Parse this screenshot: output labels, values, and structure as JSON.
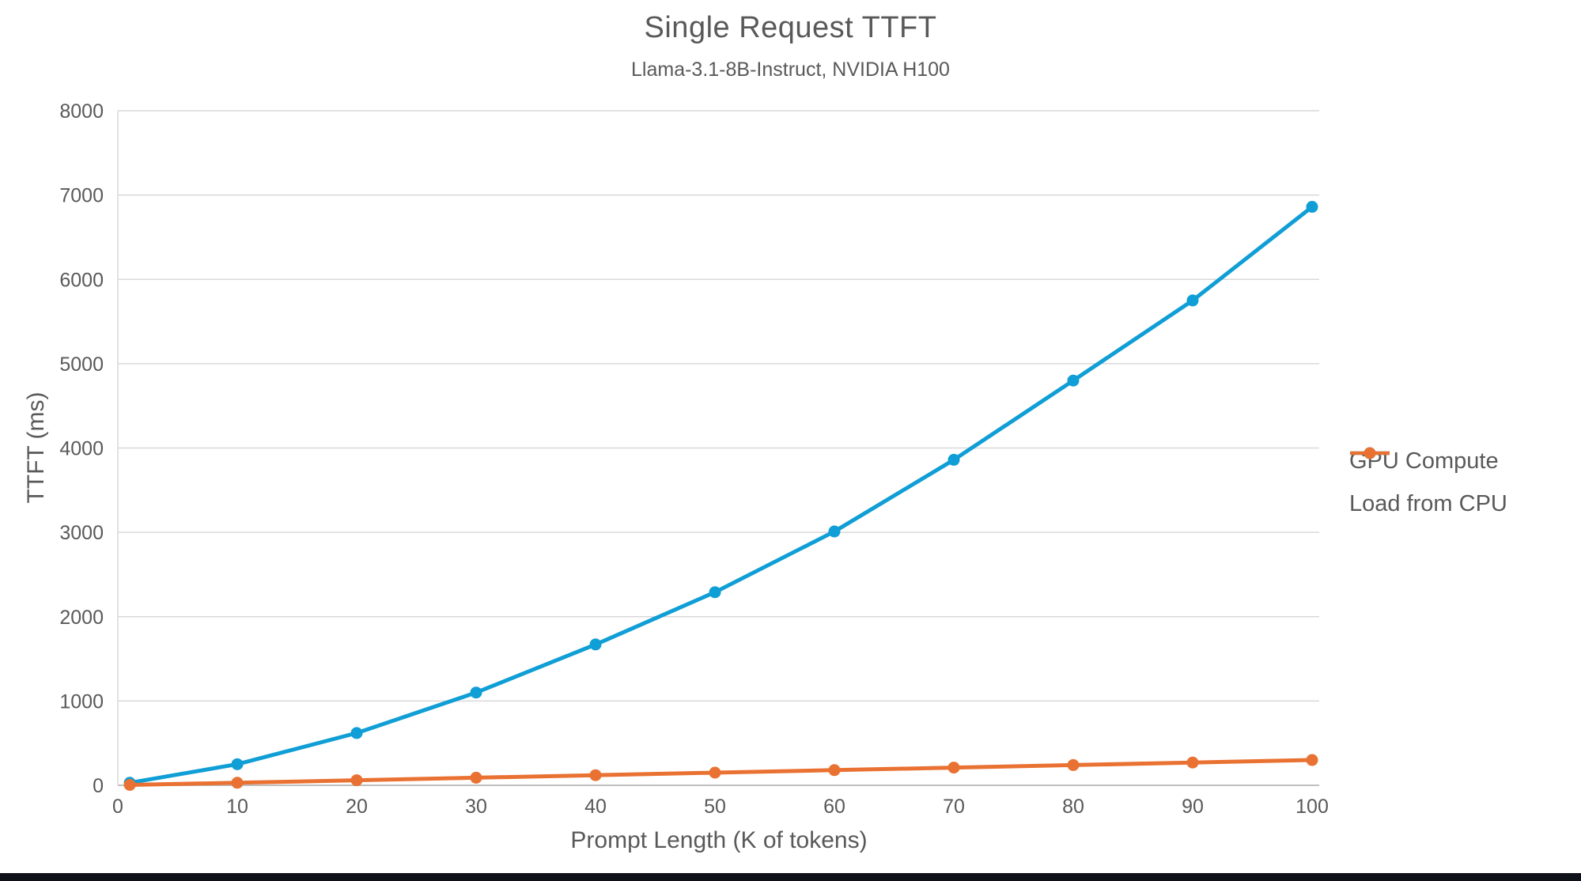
{
  "window": {
    "background": "#ffffff",
    "bottom_edge_bar_color": "#0e1118"
  },
  "chart_data": {
    "type": "line",
    "title": "Single Request TTFT",
    "subtitle": "Llama-3.1-8B-Instruct, NVIDIA H100",
    "xlabel": "Prompt Length (K of tokens)",
    "ylabel": "TTFT (ms)",
    "xlim": [
      0,
      100
    ],
    "ylim": [
      0,
      8000
    ],
    "x_ticks": [
      0,
      10,
      20,
      30,
      40,
      50,
      60,
      70,
      80,
      90,
      100
    ],
    "y_ticks": [
      0,
      1000,
      2000,
      3000,
      4000,
      5000,
      6000,
      7000,
      8000
    ],
    "grid": "horizontal",
    "legend_position": "right",
    "x": [
      1,
      10,
      20,
      30,
      40,
      50,
      60,
      70,
      80,
      90,
      100
    ],
    "series": [
      {
        "name": "GPU Compute",
        "color": "#0F9ED5",
        "marker": "circle",
        "values": [
          30,
          250,
          620,
          1100,
          1670,
          2290,
          3010,
          3860,
          4800,
          5750,
          6860
        ]
      },
      {
        "name": "Load from CPU",
        "color": "#E97132",
        "marker": "circle",
        "values": [
          5,
          30,
          60,
          90,
          120,
          150,
          180,
          210,
          240,
          270,
          300
        ]
      }
    ],
    "style": {
      "grid_color": "#D9D9D9",
      "zero_axis_color": "#BFBFBF",
      "tick_label_color": "#595959",
      "line_width": 5,
      "marker_radius": 7.5
    }
  }
}
